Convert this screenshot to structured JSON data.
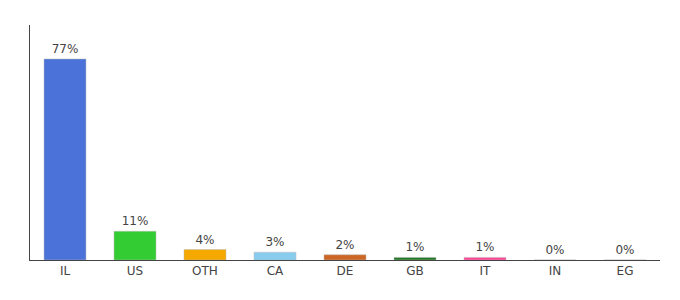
{
  "chart_data": {
    "type": "bar",
    "categories": [
      "IL",
      "US",
      "OTH",
      "CA",
      "DE",
      "GB",
      "IT",
      "IN",
      "EG"
    ],
    "values": [
      77,
      11,
      4,
      3,
      2,
      1,
      1,
      0,
      0
    ],
    "value_labels": [
      "77%",
      "11%",
      "4%",
      "3%",
      "2%",
      "1%",
      "1%",
      "0%",
      "0%"
    ],
    "colors": [
      "#4a72d9",
      "#33cc33",
      "#f5a800",
      "#88ccee",
      "#cc6622",
      "#227722",
      "#ff4499",
      "#ffffff",
      "#ffffff"
    ],
    "ylim": [
      0,
      90
    ],
    "data_labels": true,
    "tick_labels": "x",
    "grid": false
  }
}
